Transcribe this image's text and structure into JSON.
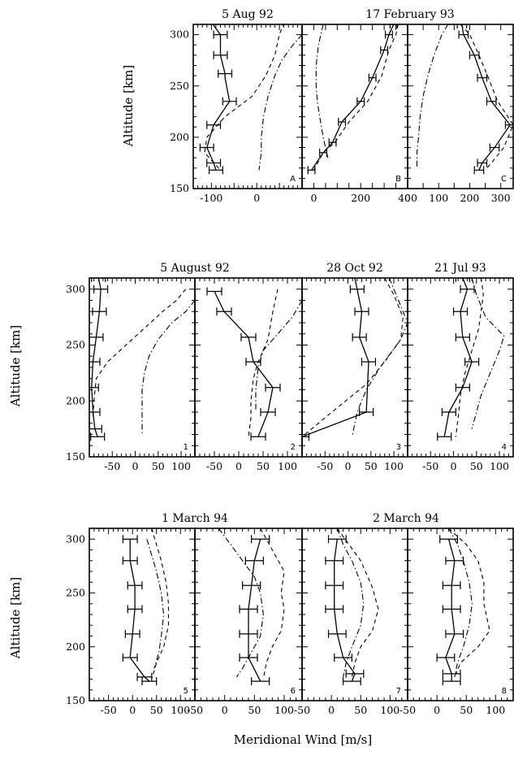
{
  "figure": {
    "xlabel": "Meridional Wind [m/s]",
    "ylabel": "Altitude [km]"
  },
  "chart_data": [
    {
      "type": "line",
      "row": 0,
      "col": 0,
      "panel_label": "A",
      "title": "5 Aug 92",
      "xlim": [
        -140,
        100
      ],
      "ylim": [
        150,
        310
      ],
      "xticks": [
        -100,
        0
      ],
      "yticks": [
        150,
        200,
        250,
        300
      ],
      "series": [
        {
          "style": "solid",
          "x": [
            -100,
            -80,
            -80,
            -70,
            -70,
            -60,
            -95,
            -110,
            -95,
            -90
          ],
          "y": [
            312,
            300,
            280,
            262,
            258,
            235,
            212,
            190,
            175,
            168
          ],
          "err": [
            0,
            15,
            15,
            15,
            0,
            15,
            15,
            15,
            15,
            15
          ]
        },
        {
          "style": "dashed",
          "x": [
            60,
            50,
            40,
            20,
            -10,
            -70,
            -110,
            -115,
            -80
          ],
          "y": [
            312,
            300,
            280,
            260,
            240,
            220,
            200,
            185,
            168
          ]
        },
        {
          "style": "dashdot",
          "x": [
            100,
            80,
            55,
            40,
            25,
            15,
            10,
            10,
            5
          ],
          "y": [
            300,
            290,
            275,
            260,
            240,
            220,
            200,
            185,
            168
          ]
        }
      ]
    },
    {
      "type": "line",
      "row": 0,
      "col": 1,
      "panel_label": "B",
      "title": "17 February 93",
      "xlim": [
        -50,
        400
      ],
      "ylim": [
        150,
        310
      ],
      "xticks": [
        0,
        200,
        400
      ],
      "yticks": [
        150,
        200,
        250,
        300
      ],
      "series": [
        {
          "style": "solid",
          "x": [
            340,
            320,
            300,
            250,
            200,
            120,
            80,
            40,
            -10
          ],
          "y": [
            310,
            300,
            285,
            258,
            235,
            215,
            195,
            185,
            168
          ]
        },
        {
          "style": "dashed",
          "x": [
            360,
            350,
            320,
            290,
            230,
            150,
            90,
            40,
            0
          ],
          "y": [
            310,
            300,
            285,
            260,
            235,
            215,
            195,
            185,
            168
          ]
        },
        {
          "style": "dashdot",
          "x": [
            40,
            20,
            10,
            10,
            15,
            25,
            40,
            50,
            60
          ],
          "y": [
            310,
            290,
            270,
            250,
            235,
            220,
            200,
            190,
            180
          ]
        }
      ]
    },
    {
      "type": "line",
      "row": 0,
      "col": 2,
      "panel_label": "C",
      "title": "",
      "xlim": [
        0,
        340
      ],
      "ylim": [
        150,
        310
      ],
      "xticks": [
        0,
        100,
        200,
        300
      ],
      "yticks": [
        150,
        200,
        250,
        300
      ],
      "series": [
        {
          "style": "solid",
          "x": [
            175,
            180,
            215,
            240,
            270,
            330,
            280,
            240,
            230
          ],
          "y": [
            310,
            300,
            280,
            258,
            235,
            212,
            190,
            175,
            168
          ]
        },
        {
          "style": "dashed",
          "x": [
            170,
            200,
            230,
            260,
            290,
            340,
            310,
            270,
            250
          ],
          "y": [
            310,
            300,
            280,
            258,
            235,
            212,
            190,
            175,
            168
          ]
        },
        {
          "style": "dashdot",
          "x": [
            130,
            110,
            85,
            65,
            50,
            40,
            35,
            30,
            30
          ],
          "y": [
            310,
            300,
            280,
            260,
            240,
            220,
            200,
            185,
            170
          ]
        }
      ]
    },
    {
      "type": "line",
      "row": 1,
      "col": 0,
      "panel_label": "1",
      "title": "5 August 92",
      "xlim": [
        -100,
        130
      ],
      "ylim": [
        150,
        310
      ],
      "xticks": [
        -50,
        0,
        50,
        100
      ],
      "yticks": [
        150,
        200,
        250,
        300
      ],
      "series": [
        {
          "style": "solid",
          "x": [
            -80,
            -75,
            -78,
            -85,
            -92,
            -95,
            -92,
            -88,
            -82
          ],
          "y": [
            310,
            300,
            280,
            257,
            235,
            212,
            190,
            175,
            168
          ]
        },
        {
          "style": "dashed",
          "x": [
            110,
            90,
            60,
            20,
            -20,
            -60,
            -85,
            -90,
            -92
          ],
          "y": [
            300,
            290,
            280,
            265,
            250,
            235,
            220,
            200,
            185
          ]
        },
        {
          "style": "dashdot",
          "x": [
            130,
            110,
            80,
            50,
            30,
            20,
            15,
            15,
            15
          ],
          "y": [
            290,
            280,
            270,
            255,
            240,
            225,
            210,
            190,
            170
          ]
        }
      ]
    },
    {
      "type": "line",
      "row": 1,
      "col": 1,
      "panel_label": "2",
      "title": "",
      "xlim": [
        -90,
        130
      ],
      "ylim": [
        150,
        310
      ],
      "xticks": [
        -50,
        0,
        50,
        100
      ],
      "yticks": [
        150,
        200,
        250,
        300
      ],
      "series": [
        {
          "style": "solid",
          "x": [
            -50,
            -30,
            20,
            30,
            70,
            60,
            40
          ],
          "y": [
            298,
            280,
            257,
            235,
            212,
            190,
            168
          ]
        },
        {
          "style": "dashed",
          "x": [
            80,
            70,
            60,
            40,
            30,
            25,
            25,
            20
          ],
          "y": [
            300,
            280,
            255,
            235,
            220,
            200,
            185,
            168
          ]
        },
        {
          "style": "dashdot",
          "x": [
            130,
            110,
            80,
            50,
            40,
            35,
            35
          ],
          "y": [
            290,
            275,
            260,
            245,
            230,
            210,
            190
          ]
        }
      ]
    },
    {
      "type": "line",
      "row": 1,
      "col": 2,
      "panel_label": "3",
      "title": "28 Oct 92",
      "xlim": [
        -100,
        130
      ],
      "ylim": [
        150,
        310
      ],
      "xticks": [
        -50,
        0,
        50,
        100
      ],
      "yticks": [
        150,
        200,
        250,
        300
      ],
      "series": [
        {
          "style": "solid",
          "x": [
            15,
            20,
            30,
            25,
            45,
            40,
            -100
          ],
          "y": [
            310,
            300,
            280,
            257,
            235,
            190,
            168
          ]
        },
        {
          "style": "dashed",
          "x": [
            80,
            100,
            120,
            115,
            80,
            40,
            -20,
            -100
          ],
          "y": [
            310,
            295,
            275,
            255,
            235,
            215,
            195,
            168
          ]
        },
        {
          "style": "dashdot",
          "x": [
            90,
            110,
            130,
            115,
            70,
            40,
            20,
            10
          ],
          "y": [
            310,
            290,
            270,
            255,
            230,
            210,
            190,
            170
          ]
        }
      ]
    },
    {
      "type": "line",
      "row": 1,
      "col": 3,
      "panel_label": "4",
      "title": "21 Jul 93",
      "xlim": [
        -100,
        130
      ],
      "ylim": [
        150,
        310
      ],
      "xticks": [
        -50,
        0,
        50,
        100
      ],
      "yticks": [
        150,
        200,
        250,
        300
      ],
      "series": [
        {
          "style": "solid",
          "x": [
            20,
            30,
            15,
            20,
            40,
            20,
            -10,
            -20
          ],
          "y": [
            310,
            300,
            280,
            257,
            235,
            212,
            190,
            168
          ]
        },
        {
          "style": "dashed",
          "x": [
            60,
            65,
            60,
            55,
            40,
            25,
            15,
            10,
            5
          ],
          "y": [
            310,
            295,
            280,
            265,
            245,
            225,
            205,
            185,
            168
          ]
        },
        {
          "style": "dashdot",
          "x": [
            40,
            50,
            70,
            110,
            100,
            80,
            60,
            50,
            40
          ],
          "y": [
            310,
            295,
            275,
            258,
            245,
            225,
            205,
            190,
            175
          ]
        }
      ]
    },
    {
      "type": "line",
      "row": 2,
      "col": 0,
      "panel_label": "5",
      "title": "1 March 94",
      "xlim": [
        -90,
        130
      ],
      "ylim": [
        150,
        310
      ],
      "xticks": [
        -50,
        0,
        50,
        100
      ],
      "yticks": [
        150,
        200,
        250,
        300
      ],
      "series": [
        {
          "style": "solid",
          "x": [
            -5,
            -5,
            5,
            5,
            0,
            -5,
            25,
            35
          ],
          "y": [
            300,
            280,
            257,
            235,
            212,
            190,
            172,
            168
          ]
        },
        {
          "style": "dashed",
          "x": [
            40,
            50,
            60,
            70,
            75,
            75,
            65,
            50,
            40
          ],
          "y": [
            310,
            295,
            280,
            260,
            240,
            220,
            200,
            185,
            170
          ]
        },
        {
          "style": "dashdot",
          "x": [
            30,
            40,
            50,
            60,
            65,
            60,
            55,
            45
          ],
          "y": [
            300,
            285,
            270,
            250,
            230,
            210,
            195,
            180
          ]
        }
      ]
    },
    {
      "type": "line",
      "row": 2,
      "col": 1,
      "panel_label": "6",
      "title": "",
      "xlim": [
        -50,
        130
      ],
      "ylim": [
        150,
        310
      ],
      "xticks": [
        -50,
        0,
        50,
        100
      ],
      "yticks": [
        150,
        200,
        250,
        300
      ],
      "series": [
        {
          "style": "solid",
          "x": [
            60,
            50,
            45,
            40,
            40,
            40,
            60
          ],
          "y": [
            300,
            280,
            257,
            235,
            212,
            190,
            168
          ]
        },
        {
          "style": "dashed",
          "x": [
            60,
            80,
            100,
            95,
            100,
            95,
            80,
            70,
            65
          ],
          "y": [
            310,
            290,
            270,
            250,
            235,
            215,
            200,
            185,
            170
          ]
        },
        {
          "style": "dashdot",
          "x": [
            -10,
            10,
            30,
            50,
            60,
            65,
            60,
            45,
            30,
            20
          ],
          "y": [
            310,
            295,
            280,
            265,
            250,
            230,
            210,
            195,
            180,
            172
          ]
        }
      ]
    },
    {
      "type": "line",
      "row": 2,
      "col": 2,
      "panel_label": "7",
      "title": "2 March 94",
      "xlim": [
        -50,
        130
      ],
      "ylim": [
        150,
        310
      ],
      "xticks": [
        -50,
        0,
        50,
        100
      ],
      "yticks": [
        150,
        200,
        250,
        300
      ],
      "series": [
        {
          "style": "solid",
          "x": [
            10,
            5,
            5,
            5,
            10,
            20,
            40,
            35
          ],
          "y": [
            300,
            280,
            257,
            235,
            212,
            190,
            175,
            168
          ]
        },
        {
          "style": "dashed",
          "x": [
            10,
            30,
            50,
            70,
            80,
            70,
            50,
            40,
            35
          ],
          "y": [
            310,
            295,
            280,
            255,
            235,
            215,
            200,
            185,
            172
          ]
        },
        {
          "style": "dashdot",
          "x": [
            10,
            20,
            35,
            50,
            55,
            50,
            35,
            25,
            20
          ],
          "y": [
            310,
            295,
            280,
            260,
            240,
            220,
            200,
            185,
            172
          ]
        }
      ]
    },
    {
      "type": "line",
      "row": 2,
      "col": 3,
      "panel_label": "8",
      "title": "",
      "xlim": [
        -50,
        130
      ],
      "ylim": [
        150,
        310
      ],
      "xticks": [
        -50,
        0,
        50,
        100
      ],
      "yticks": [
        150,
        200,
        250,
        300
      ],
      "series": [
        {
          "style": "solid",
          "x": [
            20,
            30,
            25,
            25,
            30,
            15,
            25,
            25
          ],
          "y": [
            300,
            280,
            257,
            235,
            212,
            190,
            175,
            168
          ]
        },
        {
          "style": "dashed",
          "x": [
            20,
            50,
            70,
            80,
            80,
            90,
            70,
            40,
            30
          ],
          "y": [
            310,
            295,
            280,
            260,
            240,
            215,
            200,
            185,
            172
          ]
        },
        {
          "style": "dashdot",
          "x": [
            20,
            35,
            45,
            55,
            60,
            55,
            45,
            35,
            30
          ],
          "y": [
            310,
            295,
            280,
            260,
            240,
            220,
            200,
            185,
            172
          ]
        }
      ]
    }
  ]
}
